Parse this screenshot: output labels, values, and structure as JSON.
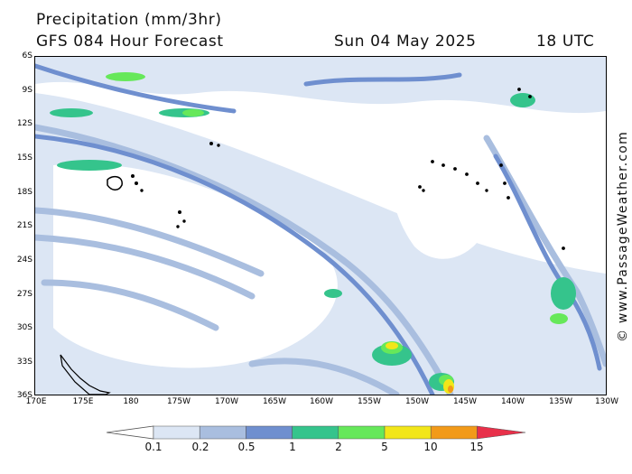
{
  "header": {
    "line1": "Precipitation (mm/3hr)",
    "line2": "GFS 084 Hour Forecast",
    "date": "Sun 04 May 2025",
    "utc": "18 UTC"
  },
  "watermark": "© www.PassageWeather.com",
  "axes": {
    "lat_labels": [
      "6S",
      "9S",
      "12S",
      "15S",
      "18S",
      "21S",
      "24S",
      "27S",
      "30S",
      "33S",
      "36S"
    ],
    "lon_labels": [
      "170E",
      "175E",
      "180",
      "175W",
      "170W",
      "165W",
      "160W",
      "155W",
      "150W",
      "145W",
      "140W",
      "135W",
      "130W"
    ]
  },
  "legend": {
    "values": [
      "0.1",
      "0.2",
      "0.5",
      "1",
      "2",
      "5",
      "10",
      "15"
    ],
    "colors": [
      "#ffffff",
      "#dce6f4",
      "#a9bedf",
      "#6f8fcf",
      "#35c48c",
      "#66e85a",
      "#f2e619",
      "#f29a19",
      "#e8304a"
    ]
  }
}
